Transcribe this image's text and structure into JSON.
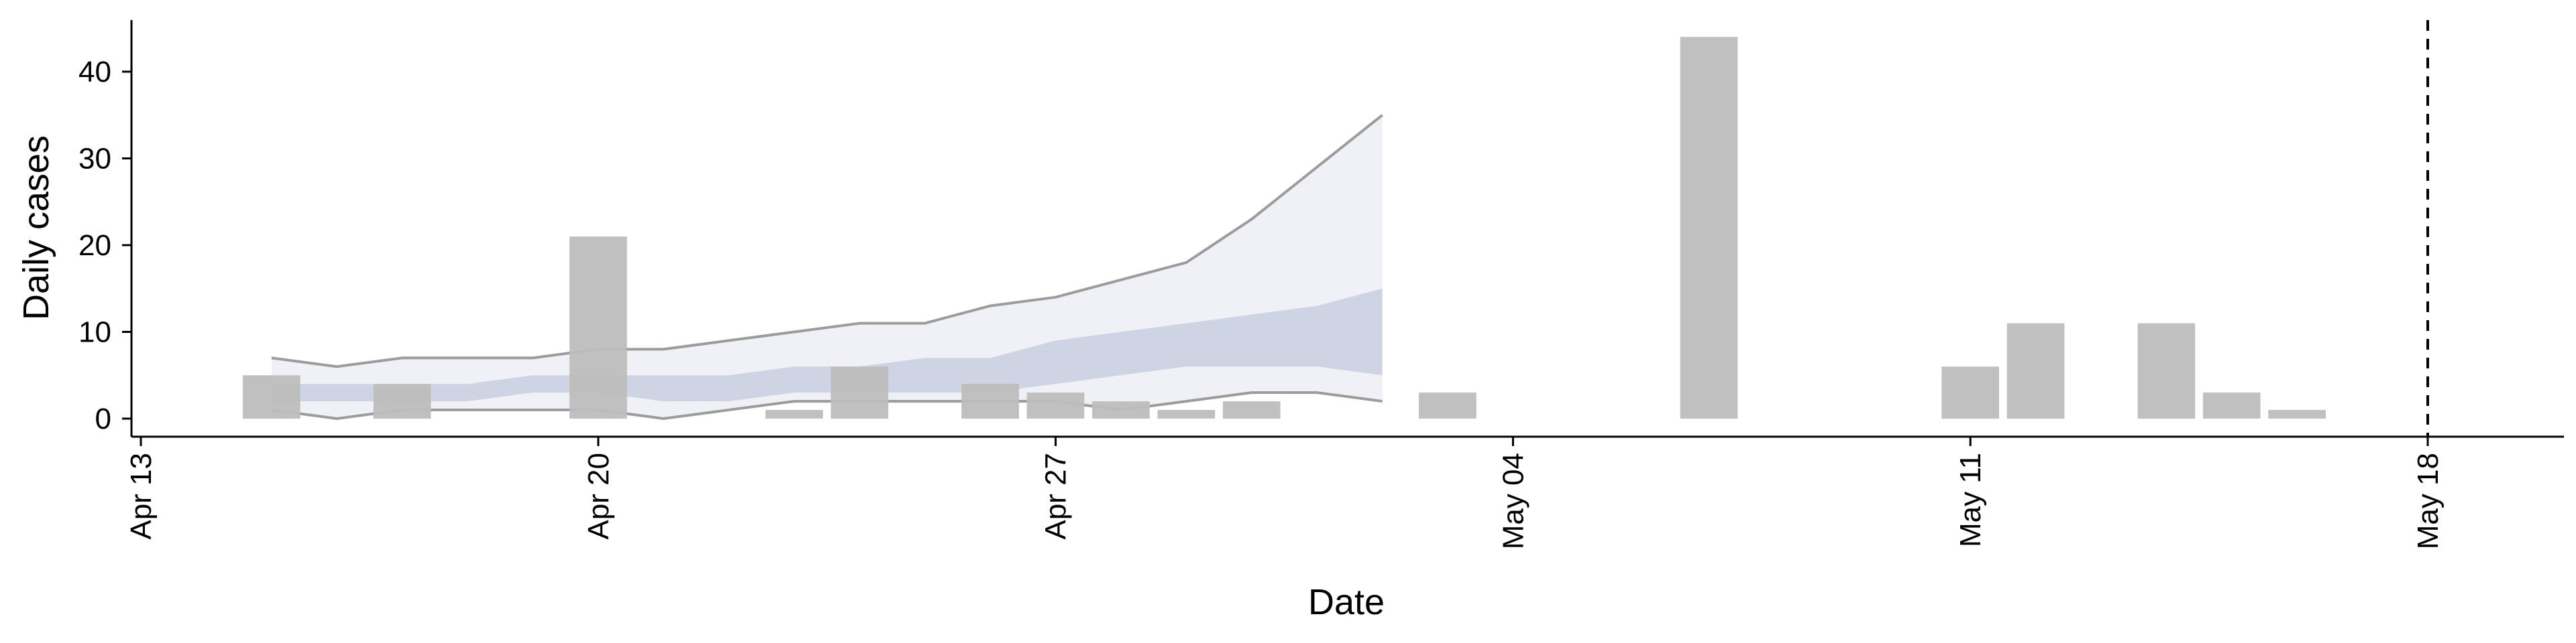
{
  "chart_data": {
    "type": "bar",
    "xlabel": "Date",
    "ylabel": "Daily cases",
    "x_range": [
      "2020-04-13",
      "2020-05-20"
    ],
    "ylim": [
      0,
      46
    ],
    "y_ticks": [
      0,
      10,
      20,
      30,
      40
    ],
    "x_ticks": [
      {
        "date": "2020-04-13",
        "label": "Apr 13"
      },
      {
        "date": "2020-04-20",
        "label": "Apr 20"
      },
      {
        "date": "2020-04-27",
        "label": "Apr 27"
      },
      {
        "date": "2020-05-04",
        "label": "May 04"
      },
      {
        "date": "2020-05-11",
        "label": "May 11"
      },
      {
        "date": "2020-05-18",
        "label": "May 18"
      }
    ],
    "grid": false,
    "bars": {
      "color": "#bdbdbd",
      "dates": [
        "2020-04-15",
        "2020-04-17",
        "2020-04-20",
        "2020-04-23",
        "2020-04-24",
        "2020-04-26",
        "2020-04-27",
        "2020-04-28",
        "2020-04-29",
        "2020-04-30",
        "2020-05-03",
        "2020-05-07",
        "2020-05-11",
        "2020-05-12",
        "2020-05-14",
        "2020-05-15",
        "2020-05-16"
      ],
      "values": [
        5,
        4,
        21,
        1,
        6,
        4,
        3,
        2,
        1,
        2,
        3,
        44,
        6,
        11,
        11,
        3,
        1
      ]
    },
    "estimate": {
      "colors": {
        "outer_band": "#e8eaf3",
        "inner_band": "#c4cadf",
        "outer_line": "#8c8c8c"
      },
      "dates": [
        "2020-04-15",
        "2020-04-16",
        "2020-04-17",
        "2020-04-18",
        "2020-04-19",
        "2020-04-20",
        "2020-04-21",
        "2020-04-22",
        "2020-04-23",
        "2020-04-24",
        "2020-04-25",
        "2020-04-26",
        "2020-04-27",
        "2020-04-28",
        "2020-04-29",
        "2020-04-30",
        "2020-05-01",
        "2020-05-02"
      ],
      "outer_lower": [
        1,
        0,
        1,
        1,
        1,
        1,
        0,
        1,
        2,
        2,
        2,
        2,
        2,
        1,
        2,
        3,
        3,
        2
      ],
      "outer_upper": [
        7,
        6,
        7,
        7,
        7,
        8,
        8,
        9,
        10,
        11,
        11,
        13,
        14,
        16,
        18,
        23,
        29,
        35
      ],
      "inner_lower": [
        2,
        2,
        2,
        2,
        3,
        3,
        2,
        2,
        3,
        3,
        3,
        3,
        4,
        5,
        6,
        6,
        6,
        5
      ],
      "inner_upper": [
        4,
        4,
        4,
        4,
        5,
        5,
        5,
        5,
        6,
        6,
        7,
        7,
        9,
        10,
        11,
        12,
        13,
        15
      ]
    },
    "vline": {
      "date": "2020-05-18",
      "style": "dashed"
    }
  }
}
